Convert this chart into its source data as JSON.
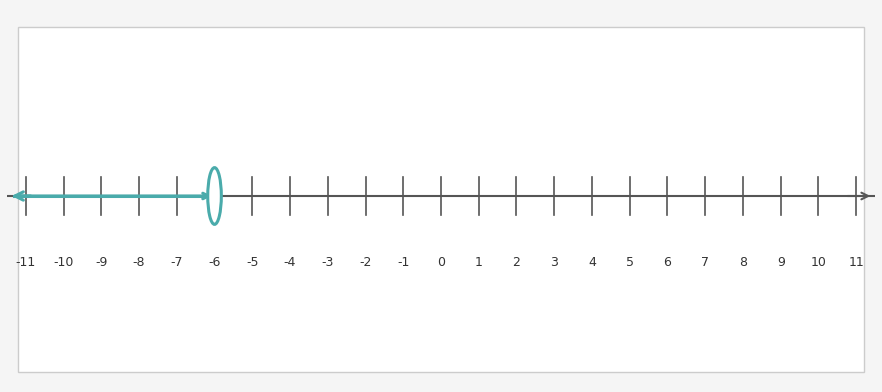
{
  "x_min": -11.5,
  "x_max": 11.5,
  "tick_positions": [
    -11,
    -10,
    -9,
    -8,
    -7,
    -6,
    -5,
    -4,
    -3,
    -2,
    -1,
    0,
    1,
    2,
    3,
    4,
    5,
    6,
    7,
    8,
    9,
    10,
    11
  ],
  "tick_labels": [
    "-11",
    "-10",
    "-9",
    "-8",
    "-7",
    "-6",
    "-5",
    "-4",
    "-3",
    "-2",
    "-1",
    "0",
    "1",
    "2",
    "3",
    "4",
    "5",
    "6",
    "7",
    "8",
    "9",
    "10",
    "11"
  ],
  "inequality_point": -6,
  "shade_direction": "left",
  "line_color": "#4AABAB",
  "axis_color": "#4AABAB",
  "number_line_color": "#555555",
  "hollow_dot_color": "#4AABAB",
  "hollow_dot_edge_color": "#4AABAB",
  "background_color": "#f5f5f5",
  "box_background": "#ffffff",
  "tick_font_size": 9,
  "figsize": [
    8.82,
    3.92
  ],
  "dpi": 100
}
